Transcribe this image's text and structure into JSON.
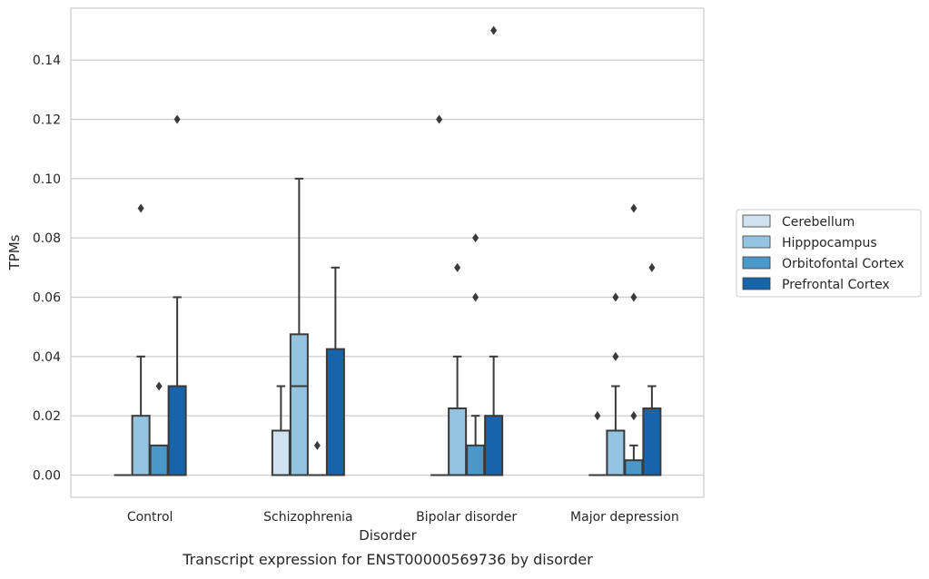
{
  "chart_data": {
    "type": "box",
    "title": "Transcript expression for ENST00000569736 by disorder",
    "xlabel": "Disorder",
    "ylabel": "TPMs",
    "ylim": [
      -0.0075,
      0.1575
    ],
    "yticks": [
      0.0,
      0.02,
      0.04,
      0.06,
      0.08,
      0.1,
      0.12,
      0.14
    ],
    "ytick_labels": [
      "0.00",
      "0.02",
      "0.04",
      "0.06",
      "0.08",
      "0.10",
      "0.12",
      "0.14"
    ],
    "grid": true,
    "legend_position": "right",
    "categories": [
      "Control",
      "Schizophrenia",
      "Bipolar disorder",
      "Major depression"
    ],
    "series": [
      {
        "name": "Cerebellum",
        "color": "#d0e1f2",
        "boxes": [
          {
            "whisker_low": 0.0,
            "q1": 0.0,
            "median": 0.0,
            "q3": 0.0,
            "whisker_high": 0.0,
            "outliers": []
          },
          {
            "whisker_low": 0.0,
            "q1": 0.0,
            "median": 0.0,
            "q3": 0.015,
            "whisker_high": 0.03,
            "outliers": []
          },
          {
            "whisker_low": 0.0,
            "q1": 0.0,
            "median": 0.0,
            "q3": 0.0,
            "whisker_high": 0.0,
            "outliers": [
              0.12
            ]
          },
          {
            "whisker_low": 0.0,
            "q1": 0.0,
            "median": 0.0,
            "q3": 0.0,
            "whisker_high": 0.0,
            "outliers": [
              0.02
            ]
          }
        ]
      },
      {
        "name": "Hipppocampus",
        "color": "#94c4df",
        "boxes": [
          {
            "whisker_low": 0.0,
            "q1": 0.0,
            "median": 0.0,
            "q3": 0.02,
            "whisker_high": 0.04,
            "outliers": [
              0.09
            ]
          },
          {
            "whisker_low": 0.0,
            "q1": 0.0,
            "median": 0.03,
            "q3": 0.0475,
            "whisker_high": 0.1,
            "outliers": []
          },
          {
            "whisker_low": 0.0,
            "q1": 0.0,
            "median": 0.0,
            "q3": 0.0225,
            "whisker_high": 0.04,
            "outliers": [
              0.07
            ]
          },
          {
            "whisker_low": 0.0,
            "q1": 0.0,
            "median": 0.0,
            "q3": 0.015,
            "whisker_high": 0.03,
            "outliers": [
              0.04,
              0.06
            ]
          }
        ]
      },
      {
        "name": "Orbitofontal Cortex",
        "color": "#4a98c9",
        "boxes": [
          {
            "whisker_low": 0.0,
            "q1": 0.0,
            "median": 0.0,
            "q3": 0.01,
            "whisker_high": 0.01,
            "outliers": [
              0.03
            ]
          },
          {
            "whisker_low": 0.0,
            "q1": 0.0,
            "median": 0.0,
            "q3": 0.0,
            "whisker_high": 0.0,
            "outliers": [
              0.01
            ]
          },
          {
            "whisker_low": 0.0,
            "q1": 0.0,
            "median": 0.0,
            "q3": 0.01,
            "whisker_high": 0.02,
            "outliers": [
              0.06,
              0.08
            ]
          },
          {
            "whisker_low": 0.0,
            "q1": 0.0,
            "median": 0.0,
            "q3": 0.005,
            "whisker_high": 0.01,
            "outliers": [
              0.02,
              0.06,
              0.09
            ]
          }
        ]
      },
      {
        "name": "Prefrontal Cortex",
        "color": "#1764ab",
        "boxes": [
          {
            "whisker_low": 0.0,
            "q1": 0.0,
            "median": 0.0,
            "q3": 0.03,
            "whisker_high": 0.06,
            "outliers": [
              0.12
            ]
          },
          {
            "whisker_low": 0.0,
            "q1": 0.0,
            "median": 0.0,
            "q3": 0.0425,
            "whisker_high": 0.07,
            "outliers": []
          },
          {
            "whisker_low": 0.0,
            "q1": 0.0,
            "median": 0.0,
            "q3": 0.02,
            "whisker_high": 0.04,
            "outliers": [
              0.15
            ]
          },
          {
            "whisker_low": 0.0,
            "q1": 0.0,
            "median": 0.0,
            "q3": 0.0225,
            "whisker_high": 0.03,
            "outliers": [
              0.07
            ]
          }
        ]
      }
    ]
  }
}
